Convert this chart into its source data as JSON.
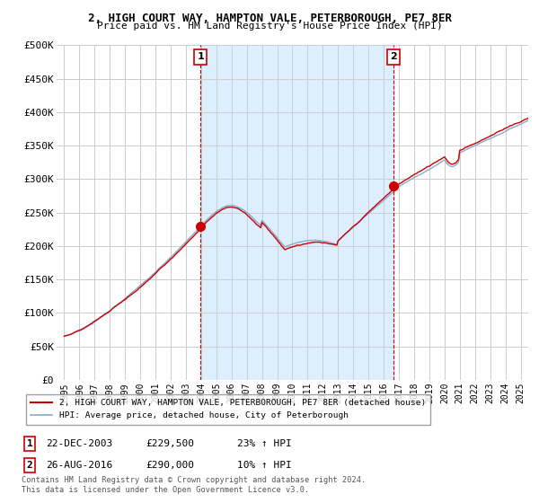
{
  "title": "2, HIGH COURT WAY, HAMPTON VALE, PETERBOROUGH, PE7 8ER",
  "subtitle": "Price paid vs. HM Land Registry's House Price Index (HPI)",
  "ylim": [
    0,
    500000
  ],
  "yticks": [
    0,
    50000,
    100000,
    150000,
    200000,
    250000,
    300000,
    350000,
    400000,
    450000,
    500000
  ],
  "ytick_labels": [
    "£0",
    "£50K",
    "£100K",
    "£150K",
    "£200K",
    "£250K",
    "£300K",
    "£350K",
    "£400K",
    "£450K",
    "£500K"
  ],
  "xlim_start": 1994.5,
  "xlim_end": 2025.5,
  "sale1_x": 2003.97,
  "sale1_y": 229500,
  "sale2_x": 2016.65,
  "sale2_y": 290000,
  "sale1_date": "22-DEC-2003",
  "sale1_price": "£229,500",
  "sale1_hpi": "23% ↑ HPI",
  "sale2_date": "26-AUG-2016",
  "sale2_price": "£290,000",
  "sale2_hpi": "10% ↑ HPI",
  "red_color": "#cc0000",
  "blue_color": "#88aacc",
  "shade_color": "#ddeeff",
  "grid_color": "#cccccc",
  "bg_color": "#ffffff",
  "legend_label_red": "2, HIGH COURT WAY, HAMPTON VALE, PETERBOROUGH, PE7 8ER (detached house)",
  "legend_label_blue": "HPI: Average price, detached house, City of Peterborough",
  "footer1": "Contains HM Land Registry data © Crown copyright and database right 2024.",
  "footer2": "This data is licensed under the Open Government Licence v3.0.",
  "xtick_years": [
    1995,
    1996,
    1997,
    1998,
    1999,
    2000,
    2001,
    2002,
    2003,
    2004,
    2005,
    2006,
    2007,
    2008,
    2009,
    2010,
    2011,
    2012,
    2013,
    2014,
    2015,
    2016,
    2017,
    2018,
    2019,
    2020,
    2021,
    2022,
    2023,
    2024,
    2025
  ]
}
